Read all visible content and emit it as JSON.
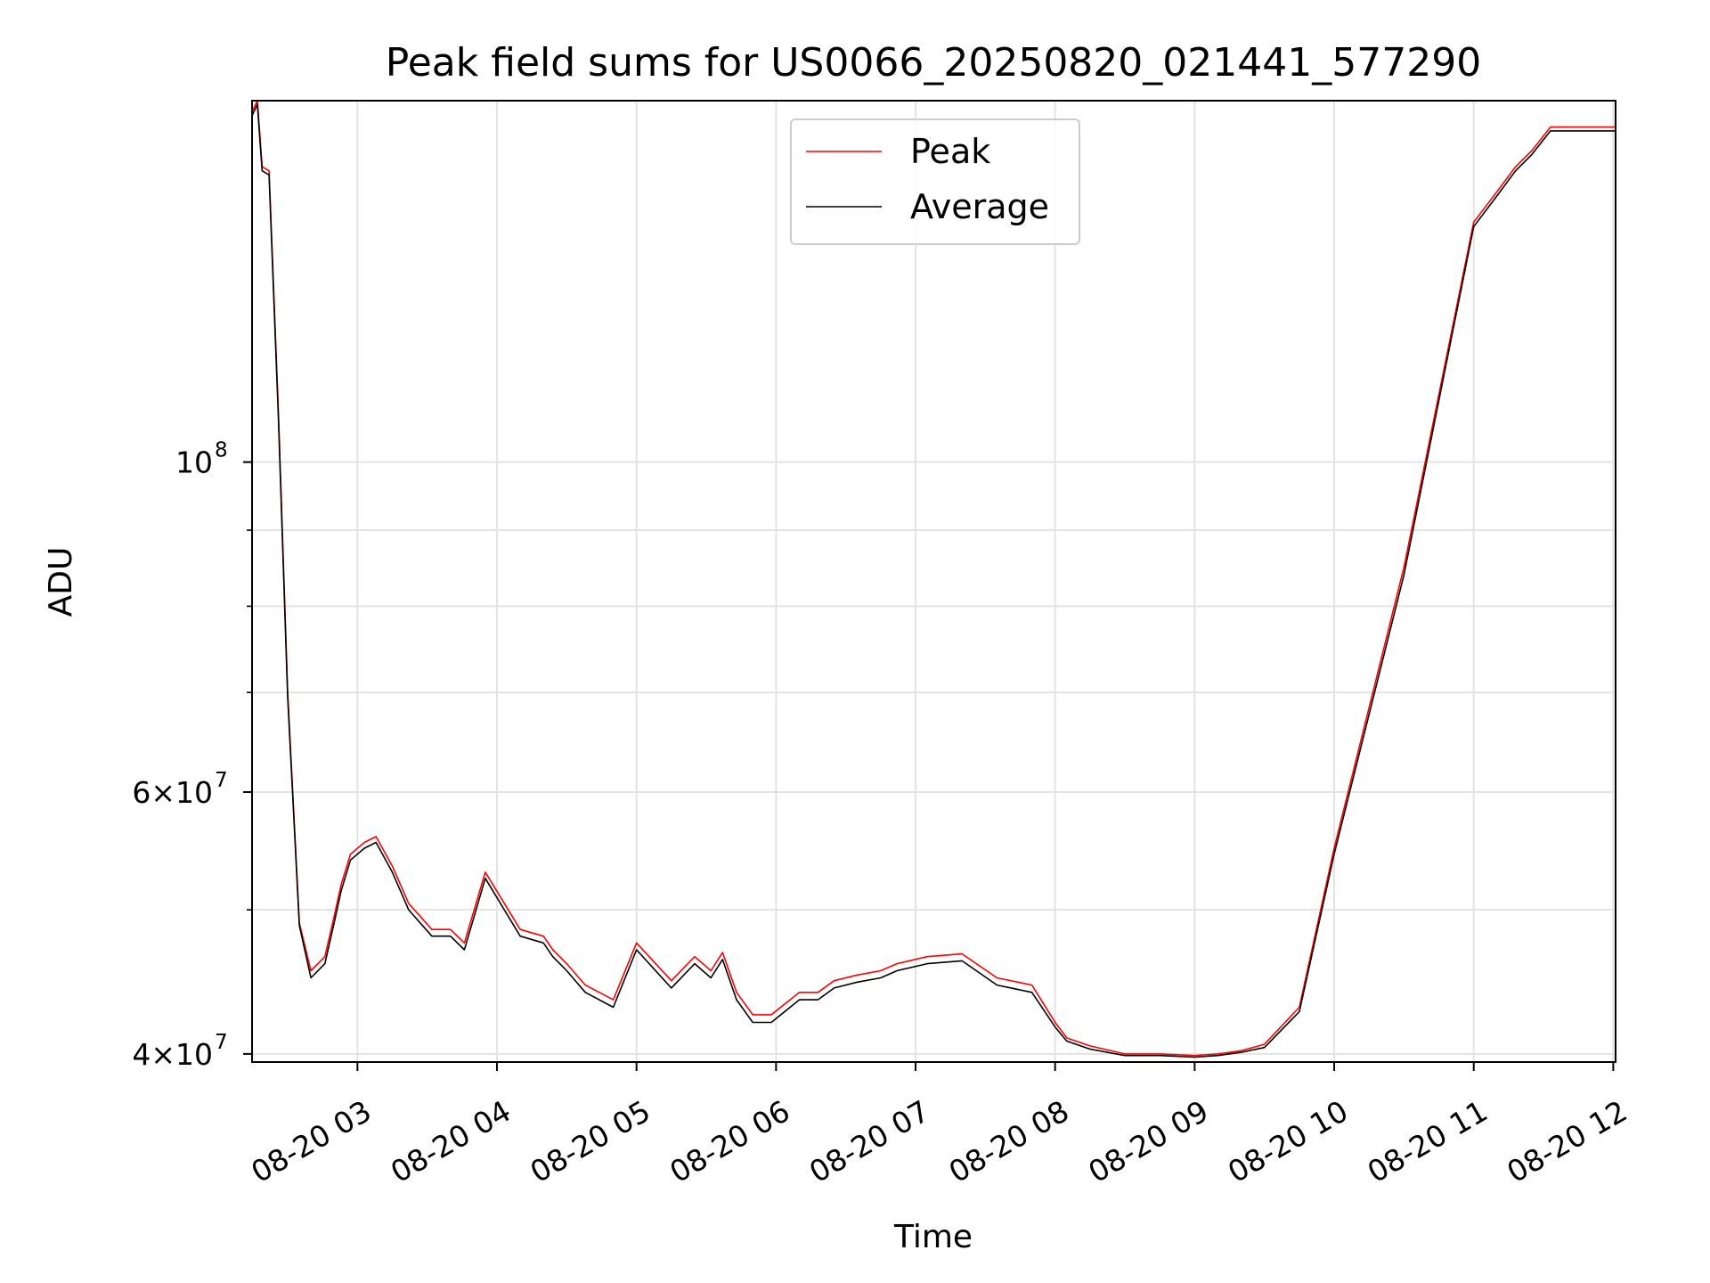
{
  "chart_data": {
    "type": "line",
    "title": "Peak field sums for US0066_20250820_021441_577290",
    "xlabel": "Time",
    "ylabel": "ADU",
    "y_scale": "log",
    "ylim": [
      39500000,
      175000000
    ],
    "xlim": [
      "2025-08-20 02:14:41",
      "2025-08-20 12:01:00"
    ],
    "grid": true,
    "legend_position": "upper center",
    "x_ticks": [
      {
        "value": "2025-08-20 03:00",
        "label": "08-20 03"
      },
      {
        "value": "2025-08-20 04:00",
        "label": "08-20 04"
      },
      {
        "value": "2025-08-20 05:00",
        "label": "08-20 05"
      },
      {
        "value": "2025-08-20 06:00",
        "label": "08-20 06"
      },
      {
        "value": "2025-08-20 07:00",
        "label": "08-20 07"
      },
      {
        "value": "2025-08-20 08:00",
        "label": "08-20 08"
      },
      {
        "value": "2025-08-20 09:00",
        "label": "08-20 09"
      },
      {
        "value": "2025-08-20 10:00",
        "label": "08-20 10"
      },
      {
        "value": "2025-08-20 11:00",
        "label": "08-20 11"
      },
      {
        "value": "2025-08-20 12:00",
        "label": "08-20 12"
      }
    ],
    "y_ticks_major": [
      {
        "value": 40000000,
        "base": "4×10",
        "exp": "7"
      },
      {
        "value": 60000000,
        "base": "6×10",
        "exp": "7"
      },
      {
        "value": 100000000,
        "base": "10",
        "exp": "8"
      }
    ],
    "y_ticks_minor": [
      50000000,
      70000000,
      80000000,
      90000000
    ],
    "series": [
      {
        "name": "Peak",
        "color": "#ff0000",
        "x": [
          "2025-08-20 02:14:41",
          "2025-08-20 02:17",
          "2025-08-20 02:19",
          "2025-08-20 02:22",
          "2025-08-20 02:26",
          "2025-08-20 02:30",
          "2025-08-20 02:35",
          "2025-08-20 02:40",
          "2025-08-20 02:46",
          "2025-08-20 02:50",
          "2025-08-20 02:53",
          "2025-08-20 02:57",
          "2025-08-20 03:03",
          "2025-08-20 03:08",
          "2025-08-20 03:15",
          "2025-08-20 03:22",
          "2025-08-20 03:32",
          "2025-08-20 03:40",
          "2025-08-20 03:46",
          "2025-08-20 03:55",
          "2025-08-20 04:10",
          "2025-08-20 04:20",
          "2025-08-20 04:24",
          "2025-08-20 04:30",
          "2025-08-20 04:38",
          "2025-08-20 04:50",
          "2025-08-20 05:00",
          "2025-08-20 05:15",
          "2025-08-20 05:25",
          "2025-08-20 05:32",
          "2025-08-20 05:37",
          "2025-08-20 05:43",
          "2025-08-20 05:50",
          "2025-08-20 05:58",
          "2025-08-20 06:10",
          "2025-08-20 06:18",
          "2025-08-20 06:25",
          "2025-08-20 06:35",
          "2025-08-20 06:45",
          "2025-08-20 06:52",
          "2025-08-20 07:05",
          "2025-08-20 07:20",
          "2025-08-20 07:35",
          "2025-08-20 07:50",
          "2025-08-20 08:00",
          "2025-08-20 08:05",
          "2025-08-20 08:15",
          "2025-08-20 08:30",
          "2025-08-20 08:45",
          "2025-08-20 09:00",
          "2025-08-20 09:10",
          "2025-08-20 09:20",
          "2025-08-20 09:30",
          "2025-08-20 09:45",
          "2025-08-20 10:00",
          "2025-08-20 10:30",
          "2025-08-20 11:00",
          "2025-08-20 11:10",
          "2025-08-20 11:18",
          "2025-08-20 11:25",
          "2025-08-20 11:33",
          "2025-08-20 11:38",
          "2025-08-20 11:45",
          "2025-08-20 11:55",
          "2025-08-20 12:01"
        ],
        "y": [
          172000000,
          175000000,
          158000000,
          157000000,
          108000000,
          70000000,
          49000000,
          45500000,
          46500000,
          49500000,
          52000000,
          54500000,
          55500000,
          56000000,
          53500000,
          50500000,
          48500000,
          48500000,
          47500000,
          53000000,
          48500000,
          48000000,
          47000000,
          46000000,
          44500000,
          43500000,
          47500000,
          44800000,
          46500000,
          45500000,
          46800000,
          44000000,
          42500000,
          42500000,
          44000000,
          44000000,
          44800000,
          45200000,
          45500000,
          46000000,
          46500000,
          46700000,
          45000000,
          44500000,
          42000000,
          41000000,
          40500000,
          40000000,
          40000000,
          39900000,
          40000000,
          40200000,
          40600000,
          43000000,
          55000000,
          85000000,
          145000000,
          152000000,
          158000000,
          162000000,
          168000000,
          168000000,
          168000000,
          168000000,
          168000000
        ]
      },
      {
        "name": "Average",
        "color": "#000000",
        "x": [
          "2025-08-20 02:14:41",
          "2025-08-20 02:17",
          "2025-08-20 02:19",
          "2025-08-20 02:22",
          "2025-08-20 02:26",
          "2025-08-20 02:30",
          "2025-08-20 02:35",
          "2025-08-20 02:40",
          "2025-08-20 02:46",
          "2025-08-20 02:50",
          "2025-08-20 02:53",
          "2025-08-20 02:57",
          "2025-08-20 03:03",
          "2025-08-20 03:08",
          "2025-08-20 03:15",
          "2025-08-20 03:22",
          "2025-08-20 03:32",
          "2025-08-20 03:40",
          "2025-08-20 03:46",
          "2025-08-20 03:55",
          "2025-08-20 04:10",
          "2025-08-20 04:20",
          "2025-08-20 04:24",
          "2025-08-20 04:30",
          "2025-08-20 04:38",
          "2025-08-20 04:50",
          "2025-08-20 05:00",
          "2025-08-20 05:15",
          "2025-08-20 05:25",
          "2025-08-20 05:32",
          "2025-08-20 05:37",
          "2025-08-20 05:43",
          "2025-08-20 05:50",
          "2025-08-20 05:58",
          "2025-08-20 06:10",
          "2025-08-20 06:18",
          "2025-08-20 06:25",
          "2025-08-20 06:35",
          "2025-08-20 06:45",
          "2025-08-20 06:52",
          "2025-08-20 07:05",
          "2025-08-20 07:20",
          "2025-08-20 07:35",
          "2025-08-20 07:50",
          "2025-08-20 08:00",
          "2025-08-20 08:05",
          "2025-08-20 08:15",
          "2025-08-20 08:30",
          "2025-08-20 08:45",
          "2025-08-20 09:00",
          "2025-08-20 09:10",
          "2025-08-20 09:20",
          "2025-08-20 09:30",
          "2025-08-20 09:45",
          "2025-08-20 10:00",
          "2025-08-20 10:30",
          "2025-08-20 11:00",
          "2025-08-20 11:10",
          "2025-08-20 11:18",
          "2025-08-20 11:25",
          "2025-08-20 11:33",
          "2025-08-20 11:38",
          "2025-08-20 11:45",
          "2025-08-20 11:55",
          "2025-08-20 12:01"
        ],
        "y": [
          171000000,
          174000000,
          157000000,
          156000000,
          107000000,
          69500000,
          48800000,
          45000000,
          46000000,
          49000000,
          51500000,
          54000000,
          55000000,
          55500000,
          53000000,
          50000000,
          48000000,
          48000000,
          47000000,
          52500000,
          48000000,
          47500000,
          46500000,
          45500000,
          44000000,
          43000000,
          47000000,
          44300000,
          46000000,
          45000000,
          46300000,
          43500000,
          42000000,
          42000000,
          43500000,
          43500000,
          44300000,
          44700000,
          45000000,
          45500000,
          46000000,
          46200000,
          44500000,
          44000000,
          41700000,
          40800000,
          40300000,
          39900000,
          39900000,
          39800000,
          39900000,
          40100000,
          40400000,
          42700000,
          54500000,
          84000000,
          144000000,
          151000000,
          157000000,
          161000000,
          167000000,
          167000000,
          167000000,
          167000000,
          167000000
        ]
      }
    ]
  }
}
